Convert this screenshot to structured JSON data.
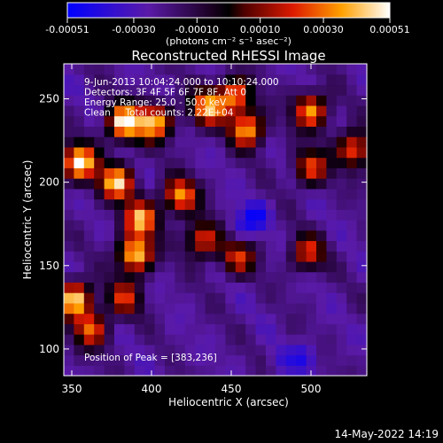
{
  "chart_data": {
    "type": "heatmap",
    "title": "Reconstructed RHESSI Image",
    "xlabel": "Heliocentric X (arcsec)",
    "ylabel": "Heliocentric Y (arcsec)",
    "xlim": [
      345,
      535
    ],
    "ylim": [
      84,
      271
    ],
    "x_ticks": [
      350,
      400,
      450,
      500
    ],
    "y_ticks": [
      100,
      150,
      200,
      250
    ],
    "colorbar": {
      "min": -0.00051,
      "max": 0.00051,
      "tick_values": [
        -0.00051,
        -0.0003,
        -0.0001,
        0.0001,
        0.0003,
        0.00051
      ],
      "tick_labels": [
        "-0.00051",
        "-0.00030",
        "-0.00010",
        "0.00010",
        "0.00030",
        "0.00051"
      ],
      "units_label": "(photons cm⁻² s⁻¹ asec⁻²)"
    },
    "annotations": [
      "9-Jun-2013 10:04:24.000 to 10:10:24.000",
      "Detectors: 3F 4F 5F 6F 7F 8F, Att 0",
      "Energy Range: 25.0 - 50.0 keV",
      "Clean     Total counts: 2.22E+04"
    ],
    "peak_label": "Position of Peak = [383,236]",
    "peak_position": [
      383,
      236
    ],
    "grid_size": [
      30,
      30
    ],
    "bright_blobs": [
      {
        "x": 355,
        "y": 212,
        "value": 0.00051
      },
      {
        "x": 352,
        "y": 130,
        "value": 0.00045
      },
      {
        "x": 383,
        "y": 236,
        "value": 0.00051
      },
      {
        "x": 402,
        "y": 236,
        "value": 0.0004
      },
      {
        "x": 378,
        "y": 200,
        "value": 0.00042
      },
      {
        "x": 393,
        "y": 178,
        "value": 0.00038
      },
      {
        "x": 390,
        "y": 157,
        "value": 0.00046
      },
      {
        "x": 418,
        "y": 192,
        "value": 0.00035
      },
      {
        "x": 435,
        "y": 245,
        "value": 0.00036
      },
      {
        "x": 452,
        "y": 252,
        "value": 0.00032
      },
      {
        "x": 460,
        "y": 232,
        "value": 0.00038
      },
      {
        "x": 500,
        "y": 243,
        "value": 0.00035
      },
      {
        "x": 527,
        "y": 220,
        "value": 0.0003
      },
      {
        "x": 500,
        "y": 209,
        "value": 0.00024
      },
      {
        "x": 432,
        "y": 166,
        "value": 0.00026
      },
      {
        "x": 454,
        "y": 155,
        "value": 0.0002
      },
      {
        "x": 498,
        "y": 158,
        "value": 0.0002
      },
      {
        "x": 362,
        "y": 112,
        "value": 0.00025
      },
      {
        "x": 383,
        "y": 131,
        "value": 0.00018
      }
    ],
    "dark_regions": [
      {
        "x": 465,
        "y": 180,
        "value": -0.00045
      },
      {
        "x": 455,
        "y": 172,
        "value": -0.00035
      },
      {
        "x": 496,
        "y": 95,
        "value": -0.0004
      },
      {
        "x": 480,
        "y": 92,
        "value": -0.0003
      },
      {
        "x": 414,
        "y": 97,
        "value": -0.00025
      }
    ]
  },
  "footer": {
    "timestamp": "14-May-2022 14:19"
  }
}
